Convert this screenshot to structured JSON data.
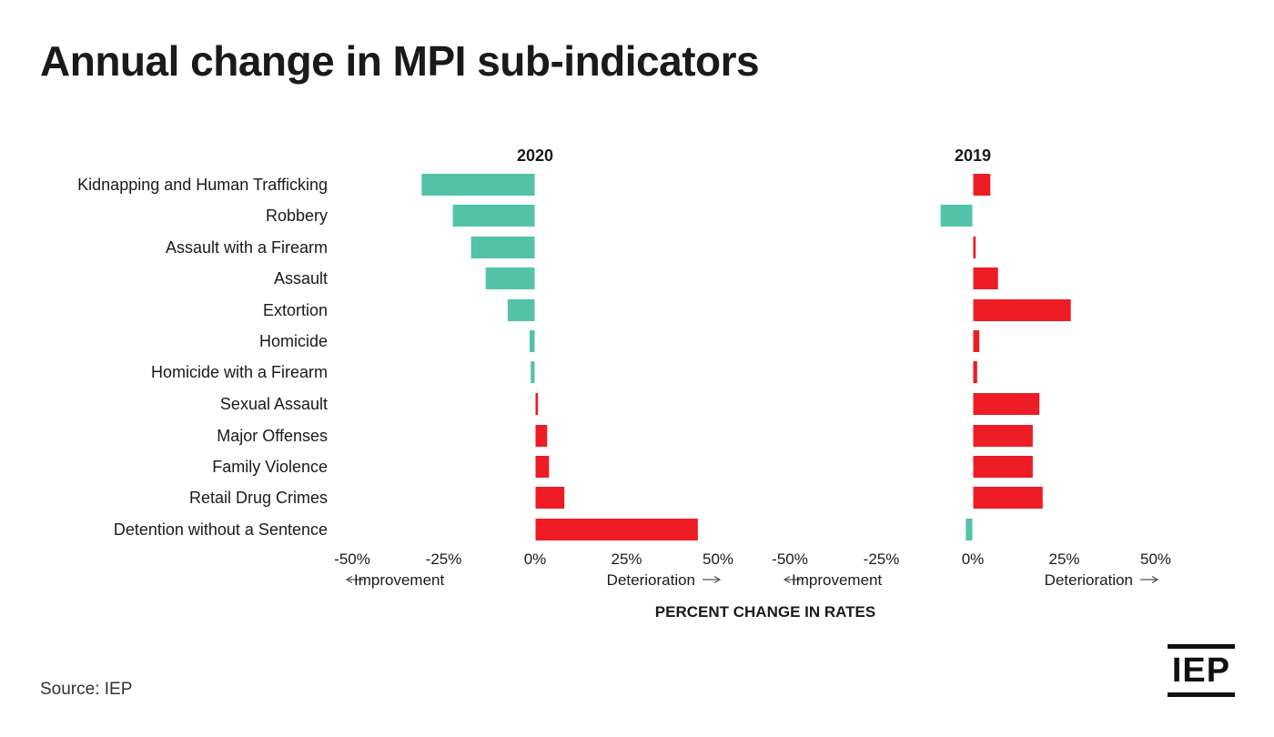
{
  "title": "Annual change in MPI sub-indicators",
  "source": "Source: IEP",
  "logo_text": "IEP",
  "colors": {
    "improvement": "#52c3a8",
    "deterioration": "#ee1c25",
    "text": "#1a1a1a"
  },
  "chart_data": [
    {
      "type": "bar",
      "orientation": "horizontal",
      "title": "2020",
      "xlabel": "PERCENT CHANGE IN RATES",
      "xlim": [
        -50,
        50
      ],
      "x_ticks": [
        "-50%",
        "-25%",
        "0%",
        "25%",
        "50%"
      ],
      "direction_labels": {
        "left": "Improvement",
        "right": "Deterioration"
      },
      "categories": [
        "Kidnapping and Human Trafficking",
        "Robbery",
        "Assault with a Firearm",
        "Assault",
        "Extortion",
        "Homicide",
        "Homicide with a Firearm",
        "Sexual Assault",
        "Major Offenses",
        "Family Violence",
        "Retail Drug Crimes",
        "Detention without a Sentence"
      ],
      "values": [
        -31,
        -22.5,
        -17.5,
        -13.5,
        -7.5,
        -1.5,
        -1.2,
        0.8,
        3.3,
        3.8,
        8,
        44.5
      ]
    },
    {
      "type": "bar",
      "orientation": "horizontal",
      "title": "2019",
      "xlabel": "PERCENT CHANGE IN RATES",
      "xlim": [
        -50,
        50
      ],
      "x_ticks": [
        "-50%",
        "-25%",
        "0%",
        "25%",
        "50%"
      ],
      "direction_labels": {
        "left": "Improvement",
        "right": "Deterioration"
      },
      "categories": [
        "Kidnapping and Human Trafficking",
        "Robbery",
        "Assault with a Firearm",
        "Assault",
        "Extortion",
        "Homicide",
        "Homicide with a Firearm",
        "Sexual Assault",
        "Major Offenses",
        "Family Violence",
        "Retail Drug Crimes",
        "Detention without a Sentence"
      ],
      "values": [
        4.8,
        -8.8,
        0.8,
        6.9,
        26.8,
        1.8,
        1.2,
        18.2,
        16.4,
        16.4,
        19.1,
        -1.9
      ]
    }
  ]
}
